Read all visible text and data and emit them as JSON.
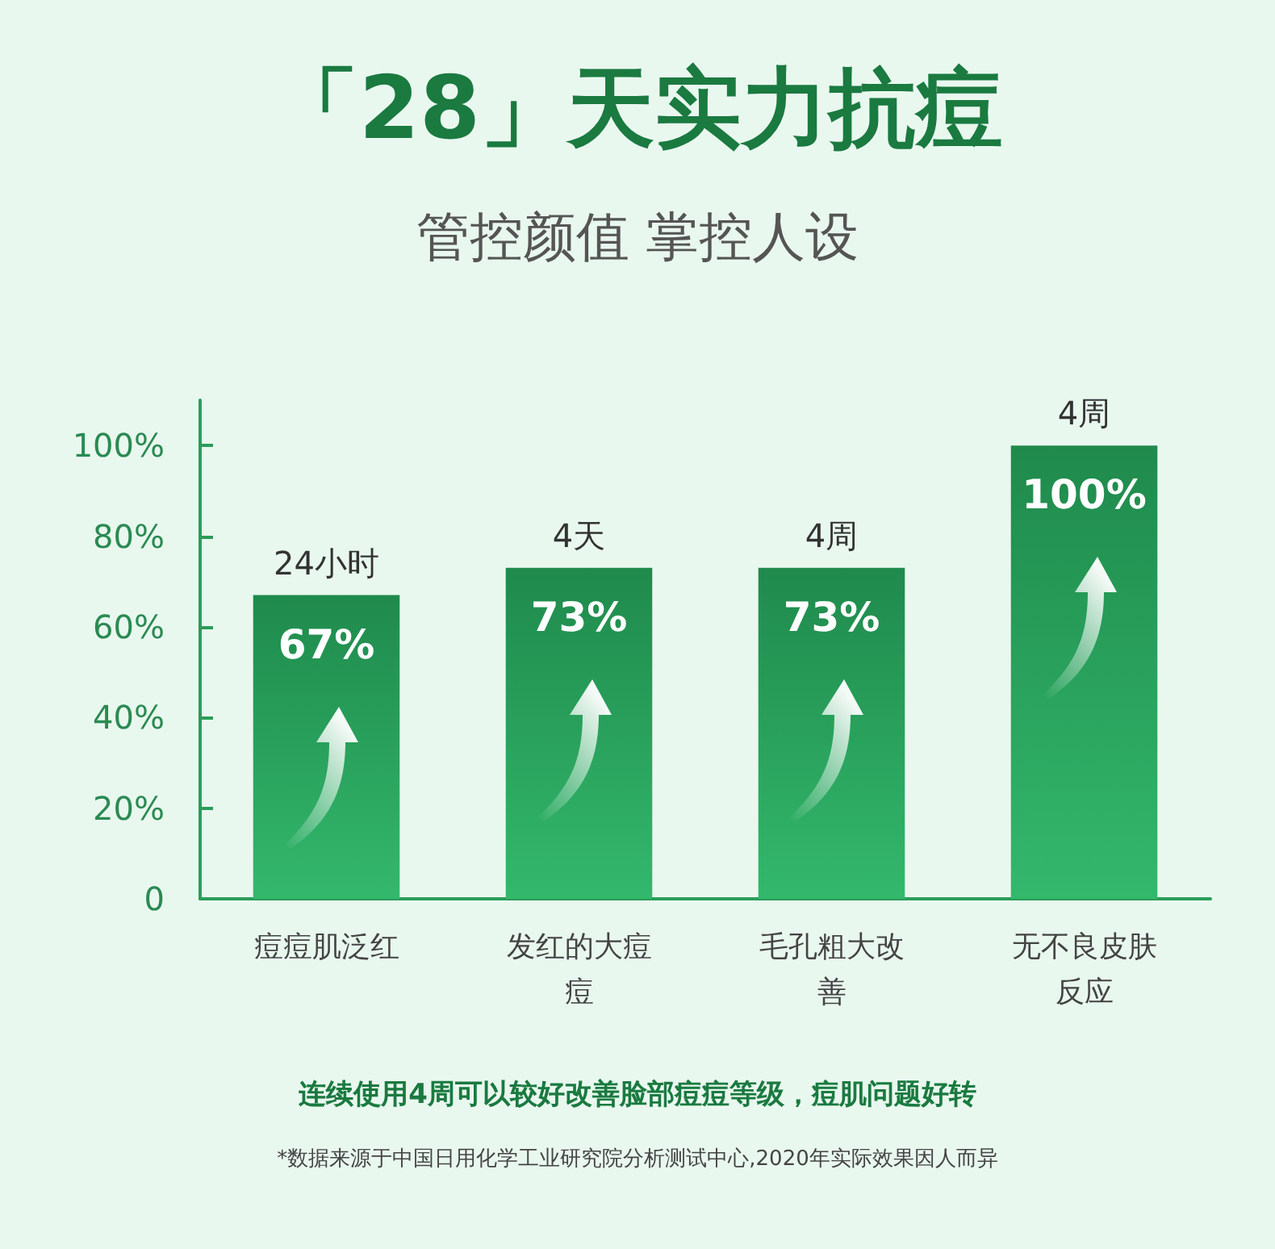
{
  "chart_data": {
    "type": "bar",
    "title": "「28」天实力抗痘",
    "subtitle": "管控颜值 掌控人设",
    "categories": [
      "痘痘肌泛红",
      "发红的大痘痘",
      "毛孔粗大改善",
      "无不良皮肤反应"
    ],
    "values": [
      67,
      73,
      73,
      100
    ],
    "color": "#1f8a4c",
    "value_labels": [
      "67%",
      "73%",
      "73%",
      "100%"
    ],
    "ylim": [
      0,
      110
    ],
    "yticks": [
      {
        "value": 0,
        "label": "0"
      },
      {
        "value": 20,
        "label": "20%"
      },
      {
        "value": 40,
        "label": "40%"
      },
      {
        "value": 60,
        "label": "60%"
      },
      {
        "value": 80,
        "label": "80%"
      },
      {
        "value": 100,
        "label": "100%"
      }
    ],
    "grid": false,
    "annotations": [
      {
        "text": "24小时",
        "x": "痘痘肌泛红",
        "y": 67
      },
      {
        "text": "4天",
        "x": "发红的大痘痘",
        "y": 73
      },
      {
        "text": "4周",
        "x": "毛孔粗大改善",
        "y": 73
      },
      {
        "text": "4周",
        "x": "无不良皮肤反应",
        "y": 100
      },
      "连续使用4周可以较好改善脸部痘痘等级，痘肌问题好转",
      "*数据来源于中国日用化学工业研究院分析测试中心,2020年实际效果因人而异"
    ]
  }
}
